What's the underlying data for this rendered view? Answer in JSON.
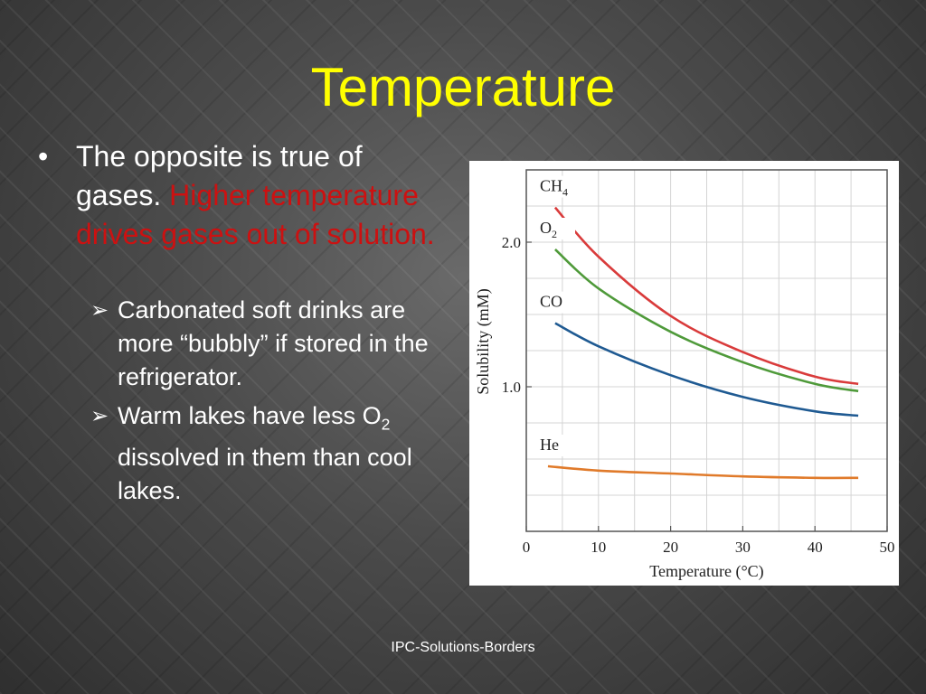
{
  "slide": {
    "title": "Temperature",
    "bullet1_white": "The opposite is true of gases.",
    "bullet1_red": "Higher temperature drives gases out of solution.",
    "sub1": "Carbonated soft drinks are more “bubbly” if stored in the refrigerator.",
    "sub2_a": "Warm lakes have less O",
    "sub2_sub": "2",
    "sub2_b": " dissolved in them than cool lakes.",
    "footer": "IPC-Solutions-Borders",
    "colors": {
      "title": "#ffff00",
      "highlight": "#cc1111"
    }
  },
  "chart_data": {
    "type": "line",
    "xlabel": "Temperature (°C)",
    "ylabel": "Solubility (mM)",
    "xlim": [
      0,
      50
    ],
    "ylim": [
      0,
      2.5
    ],
    "xticks": [
      0,
      10,
      20,
      30,
      40,
      50
    ],
    "yticks": [
      1.0,
      2.0
    ],
    "ytick_labels": [
      "1.0",
      "2.0"
    ],
    "grid": true,
    "series": [
      {
        "name": "CH4",
        "label_main": "CH",
        "label_sub": "4",
        "color": "#d93b3b",
        "x": [
          4,
          10,
          20,
          30,
          40,
          46
        ],
        "y": [
          2.24,
          1.9,
          1.49,
          1.24,
          1.07,
          1.02
        ]
      },
      {
        "name": "O2",
        "label_main": "O",
        "label_sub": "2",
        "color": "#4f9a3a",
        "x": [
          4,
          10,
          20,
          30,
          40,
          46
        ],
        "y": [
          1.95,
          1.68,
          1.38,
          1.17,
          1.02,
          0.97
        ]
      },
      {
        "name": "CO",
        "label_main": "CO",
        "label_sub": "",
        "color": "#1f5a92",
        "x": [
          4,
          10,
          20,
          30,
          40,
          46
        ],
        "y": [
          1.44,
          1.28,
          1.08,
          0.93,
          0.83,
          0.8
        ]
      },
      {
        "name": "He",
        "label_main": "He",
        "label_sub": "",
        "color": "#e07a2a",
        "x": [
          3,
          10,
          20,
          30,
          40,
          46
        ],
        "y": [
          0.45,
          0.42,
          0.4,
          0.38,
          0.37,
          0.37
        ]
      }
    ]
  }
}
